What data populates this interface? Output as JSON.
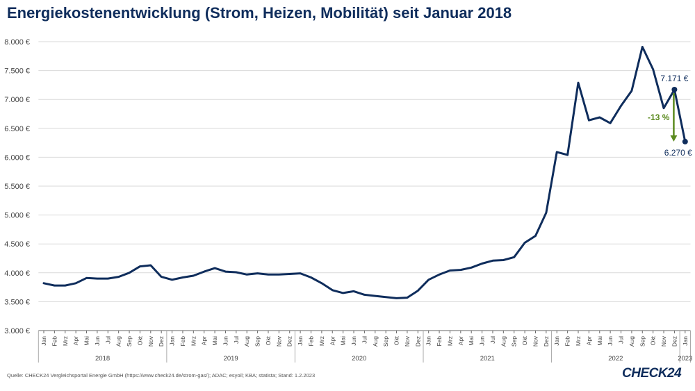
{
  "title": "Energiekostenentwicklung (Strom, Heizen, Mobilität) seit Januar 2018",
  "source": "Quelle: CHECK24 Vergleichsportal Energie GmbH (https://www.check24.de/strom-gas/); ADAC; esyoil; KBA; statista; Stand: 1.2.2023",
  "logo": "CHECK24",
  "colors": {
    "line": "#0f2d5c",
    "arrow": "#5a8a1e",
    "grid": "#d9d9d9",
    "axis": "#666666"
  },
  "chart_data": {
    "type": "line",
    "title": "Energiekostenentwicklung (Strom, Heizen, Mobilität) seit Januar 2018",
    "xlabel": "",
    "ylabel": "",
    "ylim": [
      3000,
      8000
    ],
    "yticks": [
      3000,
      3500,
      4000,
      4500,
      5000,
      5500,
      6000,
      6500,
      7000,
      7500,
      8000
    ],
    "ytick_labels": [
      "3.000 €",
      "3.500 €",
      "4.000 €",
      "4.500 €",
      "5.000 €",
      "5.500 €",
      "6.000 €",
      "6.500 €",
      "7.000 €",
      "7.500 €",
      "8.000 €"
    ],
    "grid": "horizontal",
    "month_labels": [
      "Jan",
      "Feb",
      "Mrz",
      "Apr",
      "Mai",
      "Jun",
      "Jul",
      "Aug",
      "Sep",
      "Okt",
      "Nov",
      "Dez"
    ],
    "years": [
      {
        "label": "2018",
        "months": 12
      },
      {
        "label": "2019",
        "months": 12
      },
      {
        "label": "2020",
        "months": 12
      },
      {
        "label": "2021",
        "months": 12
      },
      {
        "label": "2022",
        "months": 12
      },
      {
        "label": "2023",
        "months": 1
      }
    ],
    "series": [
      {
        "values": [
          3820,
          3780,
          3780,
          3820,
          3910,
          3900,
          3900,
          3930,
          4000,
          4110,
          4130,
          3930,
          3880,
          3920,
          3950,
          4020,
          4080,
          4020,
          4010,
          3970,
          3990,
          3970,
          3970,
          3980,
          3990,
          3920,
          3820,
          3700,
          3650,
          3680,
          3620,
          3600,
          3580,
          3560,
          3570,
          3690,
          3880,
          3970,
          4040,
          4050,
          4090,
          4160,
          4210,
          4220,
          4270,
          4520,
          4640,
          5040,
          6090,
          6040,
          7290,
          6640,
          6690,
          6590,
          6890,
          7150,
          7910,
          7520,
          6850,
          7171,
          6270
        ]
      }
    ],
    "annotations": [
      {
        "text": "7.171 €",
        "value": 7171,
        "index": 59
      },
      {
        "text": "6.270 €",
        "value": 6270,
        "index": 60
      },
      {
        "text": "-13 %",
        "from_index": 59,
        "to_value": 6270
      }
    ]
  }
}
